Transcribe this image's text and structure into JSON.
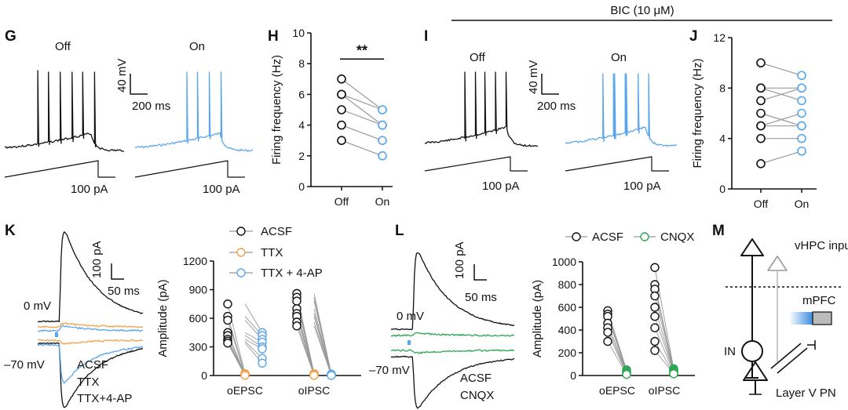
{
  "colors": {
    "black": "#111111",
    "blue": "#5aa6ee",
    "orange": "#f5a14a",
    "green": "#2ca654",
    "gray": "#999999"
  },
  "top_bar_label": "BIC (10 μM)",
  "panels": {
    "G": {
      "letter": "G",
      "off": "Off",
      "on": "On",
      "scale_v": "40 mV",
      "scale_t": "200 ms",
      "ramp": "100 pA"
    },
    "I": {
      "letter": "I",
      "off": "Off",
      "on": "On",
      "scale_v": "40 mV",
      "scale_t": "200 ms",
      "ramp": "100 pA"
    },
    "K": {
      "letter": "K",
      "scale_i": "100 pA",
      "scale_t": "50 ms",
      "v0": "0 mV",
      "v70": "–70 mV",
      "legend": [
        "ACSF",
        "TTX",
        "TTX+4-AP"
      ]
    },
    "L": {
      "letter": "L",
      "scale_i": "100 pA",
      "scale_t": "50 ms",
      "v0": "0 mV",
      "v70": "–70 mV",
      "legend": [
        "ACSF",
        "CNQX"
      ]
    },
    "M": {
      "letter": "M",
      "vhpc": "vHPC input",
      "mpfc": "mPFC",
      "in": "IN",
      "layer": "Layer V PN"
    }
  },
  "chart_data": [
    {
      "id": "H",
      "letter": "H",
      "type": "scatter",
      "ylabel": "Firing frequency (Hz)",
      "categories": [
        "Off",
        "On"
      ],
      "ylim": [
        0,
        10
      ],
      "yticks": [
        "0",
        "2",
        "4",
        "6",
        "8",
        "10"
      ],
      "significance": "**",
      "pairs": [
        [
          7,
          5
        ],
        [
          6,
          4
        ],
        [
          6,
          5
        ],
        [
          5,
          4
        ],
        [
          4,
          3
        ],
        [
          3,
          2
        ]
      ]
    },
    {
      "id": "J",
      "letter": "J",
      "type": "scatter",
      "ylabel": "Firing frequency (Hz)",
      "categories": [
        "Off",
        "On"
      ],
      "ylim": [
        0,
        12
      ],
      "yticks": [
        "0",
        "4",
        "8",
        "12"
      ],
      "pairs": [
        [
          10,
          9
        ],
        [
          8,
          8
        ],
        [
          8,
          7
        ],
        [
          7,
          8
        ],
        [
          6,
          5
        ],
        [
          5,
          6
        ],
        [
          5,
          5
        ],
        [
          4,
          4
        ],
        [
          2,
          3
        ]
      ]
    },
    {
      "id": "K",
      "letter": "K",
      "type": "scatter",
      "ylabel": "Amplitude (pA)",
      "categories": [
        "oEPSC",
        "oIPSC"
      ],
      "ylim": [
        0,
        1200
      ],
      "yticks": [
        "0",
        "300",
        "600",
        "900",
        "1200"
      ],
      "series": [
        {
          "name": "ACSF"
        },
        {
          "name": "TTX"
        },
        {
          "name": "TTX + 4-AP"
        }
      ],
      "oEPSC": {
        "ACSF": [
          750,
          620,
          580,
          450,
          420,
          380,
          360,
          340
        ],
        "TTX": [
          20,
          15,
          10,
          8,
          5,
          5,
          3,
          2
        ],
        "TTX4AP": [
          450,
          420,
          380,
          350,
          300,
          280,
          180,
          130
        ]
      },
      "oIPSC": {
        "ACSF": [
          860,
          820,
          780,
          700,
          650,
          620,
          560,
          520
        ],
        "TTX": [
          20,
          15,
          10,
          8,
          5,
          5,
          3,
          2
        ],
        "TTX4AP": [
          15,
          10,
          8,
          5,
          3,
          2,
          2,
          1
        ]
      }
    },
    {
      "id": "L",
      "letter": "L",
      "type": "scatter",
      "ylabel": "Amplitude (pA)",
      "categories": [
        "oEPSC",
        "oIPSC"
      ],
      "ylim": [
        0,
        1000
      ],
      "yticks": [
        "0",
        "200",
        "400",
        "600",
        "800",
        "1000"
      ],
      "series": [
        {
          "name": "ACSF"
        },
        {
          "name": "CNQX"
        }
      ],
      "oEPSC": {
        "ACSF": [
          570,
          540,
          520,
          460,
          420,
          380,
          300
        ],
        "CNQX": [
          50,
          40,
          30,
          25,
          20,
          15,
          10
        ]
      },
      "oIPSC": {
        "ACSF": [
          950,
          800,
          760,
          700,
          600,
          520,
          420,
          300,
          220
        ],
        "CNQX": [
          60,
          50,
          45,
          40,
          35,
          30,
          25,
          20,
          15
        ]
      }
    }
  ]
}
